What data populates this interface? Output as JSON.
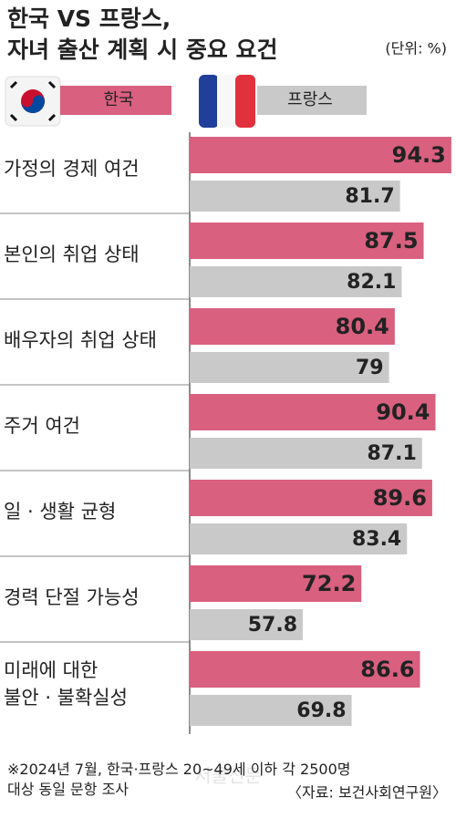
{
  "chart_data": {
    "type": "bar",
    "orientation": "horizontal",
    "title": "한국 VS 프랑스,\n자녀 출산 계획 시 중요 요건",
    "unit": "(단위: %)",
    "categories": [
      "가정의 경제 여건",
      "본인의 취업 상태",
      "배우자의 취업 상태",
      "주거 여건",
      "일 · 생활 균형",
      "경력 단절 가능성",
      "미래에 대한\n불안 · 불확실성"
    ],
    "series": [
      {
        "name": "한국",
        "color": "#d9607f",
        "values": [
          94.3,
          87.5,
          80.4,
          90.4,
          89.6,
          72.2,
          86.6
        ]
      },
      {
        "name": "프랑스",
        "color": "#c9c9c9",
        "values": [
          81.7,
          82.1,
          79,
          87.1,
          83.4,
          57.8,
          69.8
        ]
      }
    ],
    "xlim": [
      30,
      95
    ],
    "note": "※2024년 7월, 한국·프랑스 20~49세 이하 각 2500명\n대상 동일 문항 조사",
    "source": "〈자료: 보건사회연구원〉",
    "watermark": "서울신문"
  }
}
